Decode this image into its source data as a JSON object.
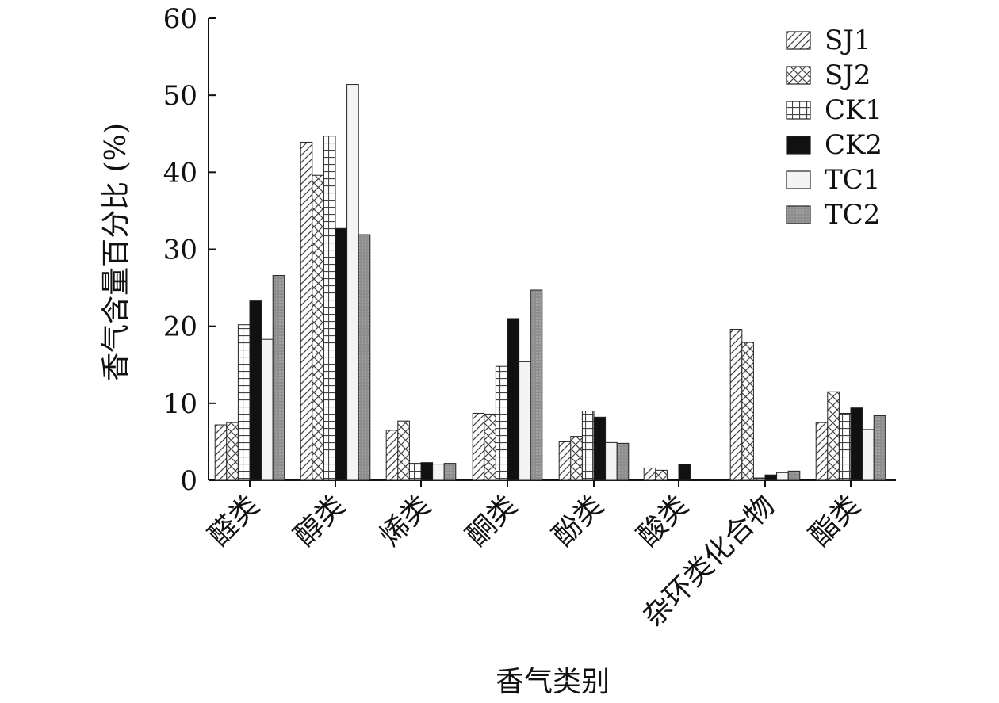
{
  "chart_data": {
    "type": "bar",
    "xlabel": "香气类别",
    "ylabel": "香气含量百分比 (%)",
    "ylim": [
      0,
      60
    ],
    "yticks": [
      0,
      10,
      20,
      30,
      40,
      50,
      60
    ],
    "legend": "top-right",
    "grid": false,
    "categories": [
      "醛类",
      "醇类",
      "烯类",
      "酮类",
      "酚类",
      "酸类",
      "杂环类化合物",
      "酯类"
    ],
    "series": [
      {
        "name": "SJ1",
        "pattern": "diagonal",
        "values": [
          7.2,
          43.9,
          6.5,
          8.7,
          5.0,
          1.6,
          19.6,
          7.5
        ]
      },
      {
        "name": "SJ2",
        "pattern": "crosshatch",
        "values": [
          7.5,
          39.6,
          7.7,
          8.6,
          5.7,
          1.3,
          17.9,
          11.5
        ]
      },
      {
        "name": "CK1",
        "pattern": "grid",
        "values": [
          20.2,
          44.7,
          2.2,
          14.8,
          9.0,
          0,
          0.3,
          8.7
        ]
      },
      {
        "name": "CK2",
        "pattern": "solid-black",
        "values": [
          23.3,
          32.7,
          2.3,
          21.0,
          8.2,
          2.1,
          0.7,
          9.4
        ]
      },
      {
        "name": "TC1",
        "pattern": "light",
        "values": [
          18.3,
          51.4,
          2.1,
          15.4,
          4.9,
          0,
          1.0,
          6.6
        ]
      },
      {
        "name": "TC2",
        "pattern": "gray",
        "values": [
          26.6,
          31.9,
          2.2,
          24.7,
          4.8,
          0,
          1.2,
          8.4
        ]
      }
    ]
  }
}
